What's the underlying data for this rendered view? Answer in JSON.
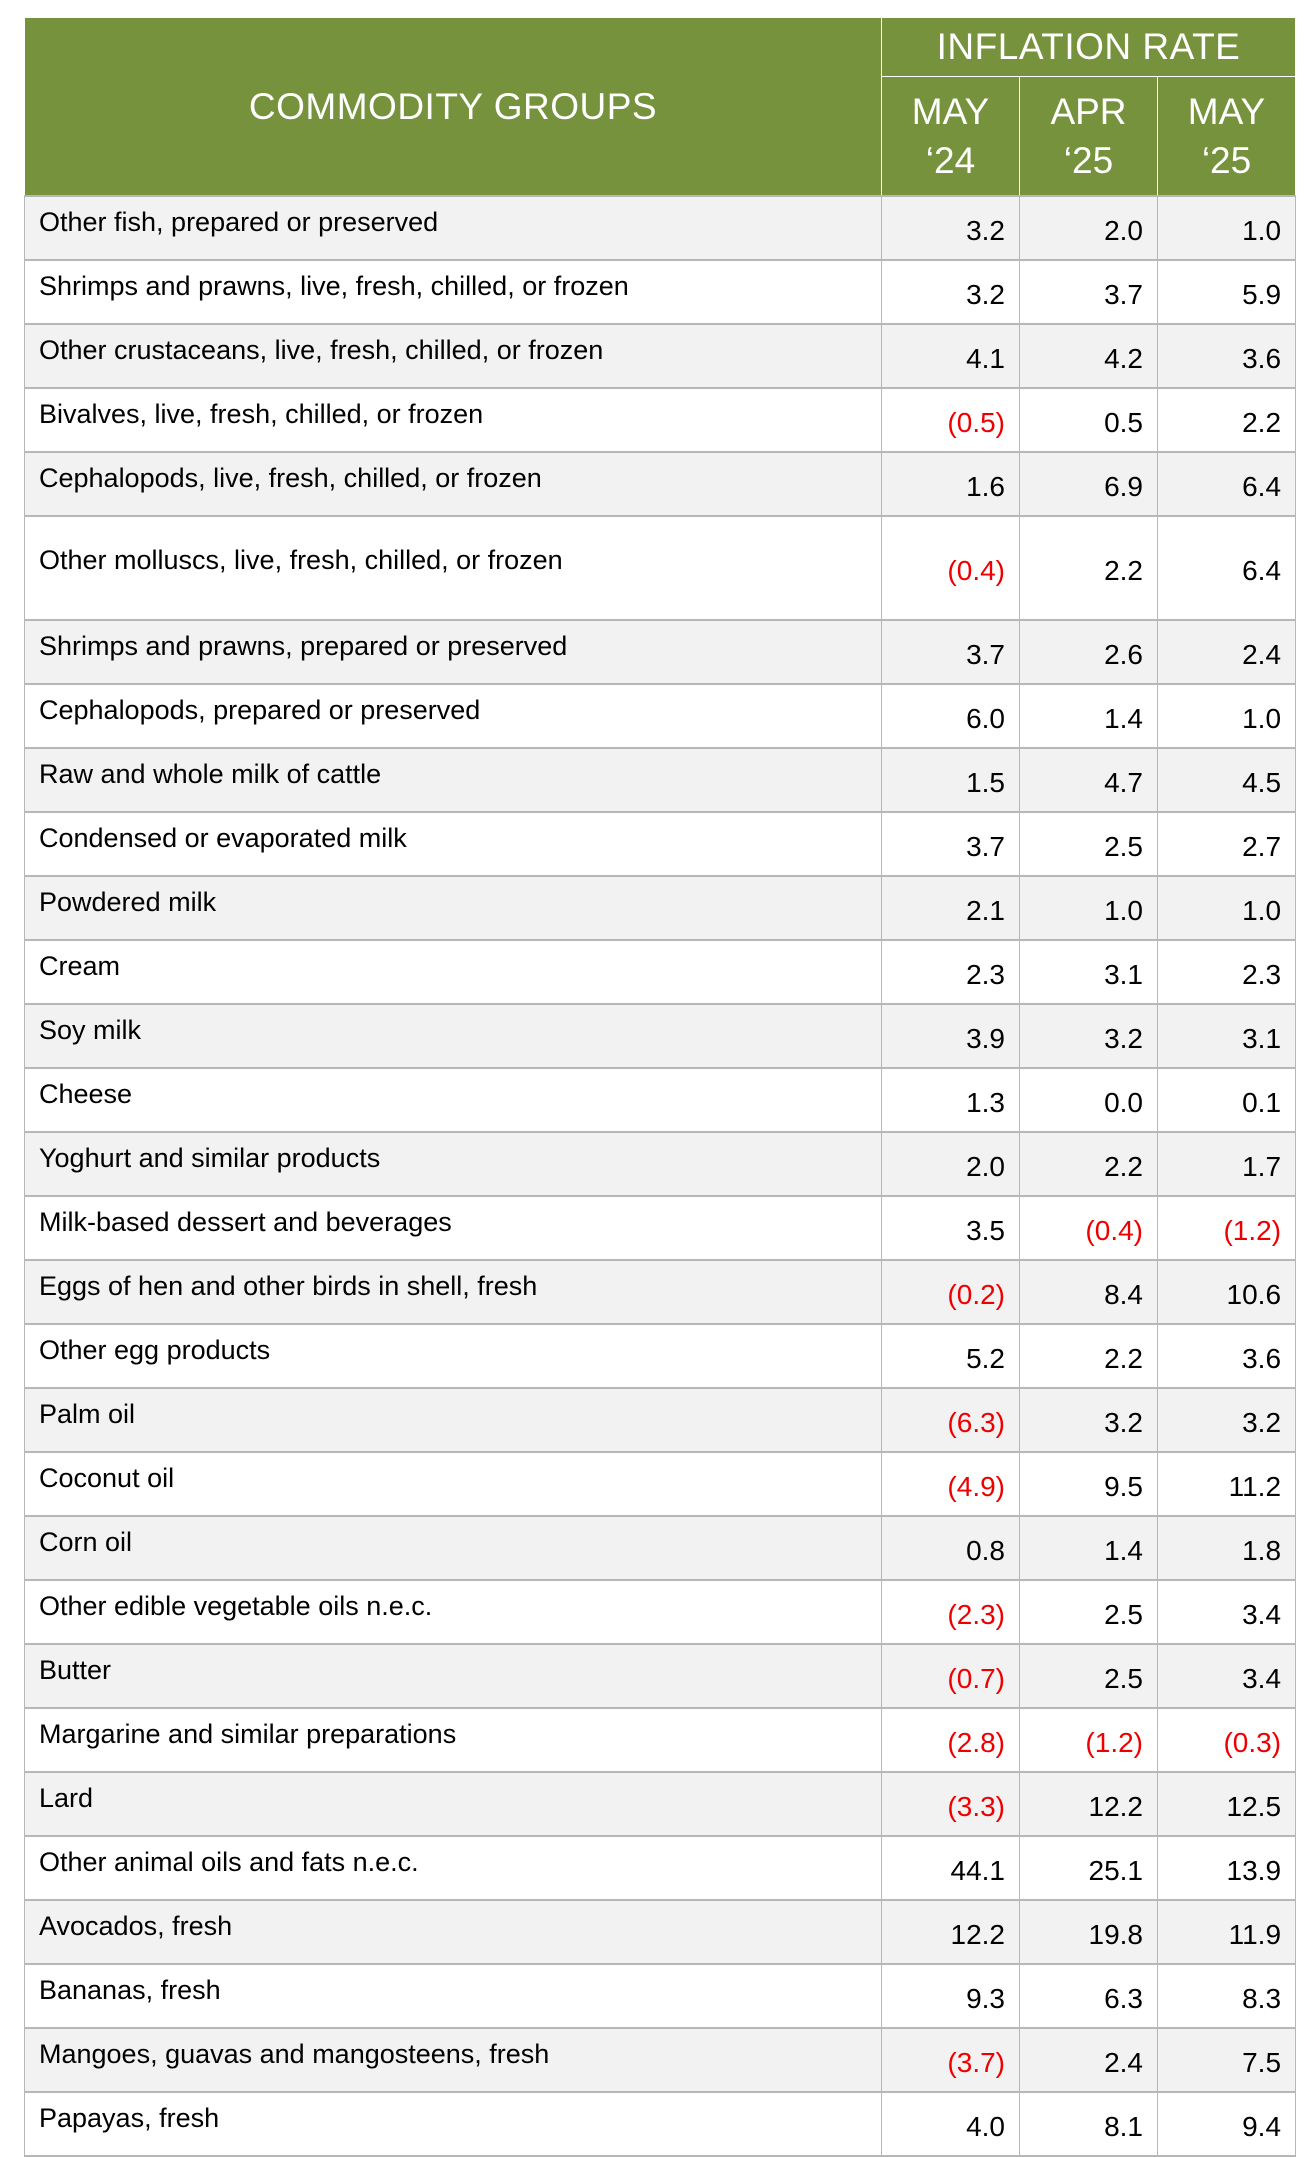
{
  "header": {
    "groups_label": "COMMODITY GROUPS",
    "rate_label": "INFLATION RATE",
    "periods": [
      {
        "month": "MAY",
        "year": "‘24"
      },
      {
        "month": "APR",
        "year": "‘25"
      },
      {
        "month": "MAY",
        "year": "‘25"
      }
    ]
  },
  "colors": {
    "header_bg": "#76923c",
    "header_text": "#ffffff",
    "negative": "#ee0000",
    "row_shade": "#f2f2f2"
  },
  "rows": [
    {
      "name": "Other fish, prepared or preserved",
      "values": [
        "3.2",
        "2.0",
        "1.0"
      ]
    },
    {
      "name": "Shrimps and prawns, live, fresh, chilled, or frozen",
      "values": [
        "3.2",
        "3.7",
        "5.9"
      ]
    },
    {
      "name": "Other crustaceans, live, fresh, chilled, or frozen",
      "values": [
        "4.1",
        "4.2",
        "3.6"
      ]
    },
    {
      "name": "Bivalves, live, fresh, chilled, or frozen",
      "values": [
        "(0.5)",
        "0.5",
        "2.2"
      ]
    },
    {
      "name": "Cephalopods, live, fresh, chilled, or frozen",
      "values": [
        "1.6",
        "6.9",
        "6.4"
      ]
    },
    {
      "name": "Other molluscs, live, fresh, chilled, or frozen",
      "values": [
        "(0.4)",
        "2.2",
        "6.4"
      ]
    },
    {
      "name": "Shrimps and prawns, prepared or preserved",
      "values": [
        "3.7",
        "2.6",
        "2.4"
      ]
    },
    {
      "name": "Cephalopods, prepared or preserved",
      "values": [
        "6.0",
        "1.4",
        "1.0"
      ]
    },
    {
      "name": "Raw and whole milk of cattle",
      "values": [
        "1.5",
        "4.7",
        "4.5"
      ]
    },
    {
      "name": "Condensed or evaporated milk",
      "values": [
        "3.7",
        "2.5",
        "2.7"
      ]
    },
    {
      "name": "Powdered milk",
      "values": [
        "2.1",
        "1.0",
        "1.0"
      ]
    },
    {
      "name": "Cream",
      "values": [
        "2.3",
        "3.1",
        "2.3"
      ]
    },
    {
      "name": "Soy milk",
      "values": [
        "3.9",
        "3.2",
        "3.1"
      ]
    },
    {
      "name": "Cheese",
      "values": [
        "1.3",
        "0.0",
        "0.1"
      ]
    },
    {
      "name": "Yoghurt and similar products",
      "values": [
        "2.0",
        "2.2",
        "1.7"
      ]
    },
    {
      "name": "Milk-based dessert and beverages",
      "values": [
        "3.5",
        "(0.4)",
        "(1.2)"
      ]
    },
    {
      "name": "Eggs of hen and other birds in shell, fresh",
      "values": [
        "(0.2)",
        "8.4",
        "10.6"
      ]
    },
    {
      "name": "Other egg products",
      "values": [
        "5.2",
        "2.2",
        "3.6"
      ]
    },
    {
      "name": "Palm oil",
      "values": [
        "(6.3)",
        "3.2",
        "3.2"
      ]
    },
    {
      "name": "Coconut oil",
      "values": [
        "(4.9)",
        "9.5",
        "11.2"
      ]
    },
    {
      "name": "Corn oil",
      "values": [
        "0.8",
        "1.4",
        "1.8"
      ]
    },
    {
      "name": "Other edible vegetable oils n.e.c.",
      "values": [
        "(2.3)",
        "2.5",
        "3.4"
      ]
    },
    {
      "name": "Butter",
      "values": [
        "(0.7)",
        "2.5",
        "3.4"
      ]
    },
    {
      "name": "Margarine and similar preparations",
      "values": [
        "(2.8)",
        "(1.2)",
        "(0.3)"
      ]
    },
    {
      "name": "Lard",
      "values": [
        "(3.3)",
        "12.2",
        "12.5"
      ]
    },
    {
      "name": "Other animal oils and fats n.e.c.",
      "values": [
        "44.1",
        "25.1",
        "13.9"
      ]
    },
    {
      "name": "Avocados, fresh",
      "values": [
        "12.2",
        "19.8",
        "11.9"
      ]
    },
    {
      "name": "Bananas, fresh",
      "values": [
        "9.3",
        "6.3",
        "8.3"
      ]
    },
    {
      "name": "Mangoes, guavas and mangosteens, fresh",
      "values": [
        "(3.7)",
        "2.4",
        "7.5"
      ]
    },
    {
      "name": "Papayas, fresh",
      "values": [
        "4.0",
        "8.1",
        "9.4"
      ]
    }
  ]
}
